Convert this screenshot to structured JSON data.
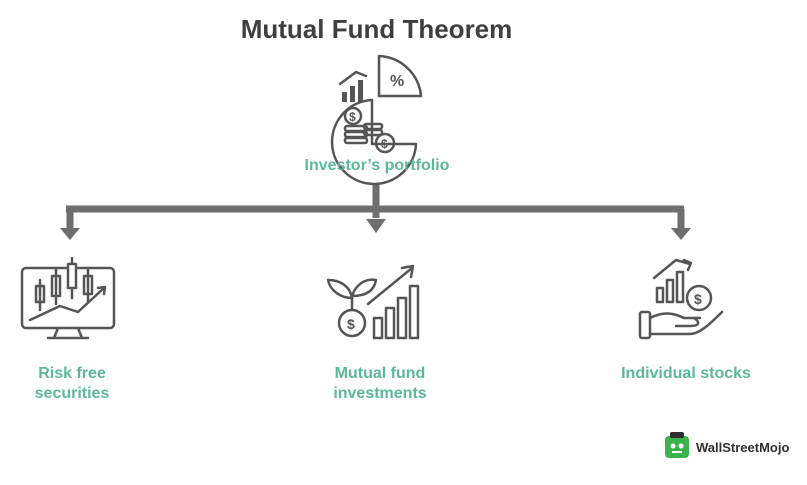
{
  "title": "Mutual Fund Theorem",
  "root": {
    "label": "Investor’s portfolio",
    "icon": "portfolio-pie-icon"
  },
  "leaves": [
    {
      "label_line1": "Risk free",
      "label_line2": "securities",
      "icon": "monitor-candlestick-icon"
    },
    {
      "label_line1": "Mutual fund",
      "label_line2": "investments",
      "icon": "growing-plant-chart-icon"
    },
    {
      "label": "Individual stocks",
      "icon": "hand-coin-chart-icon"
    }
  ],
  "brand": {
    "name": "WallStreetMojo"
  },
  "colors": {
    "accent": "#5bb89a",
    "line": "#6e6e6e",
    "title": "#3f3f3f",
    "brand_green": "#3bb34a"
  }
}
